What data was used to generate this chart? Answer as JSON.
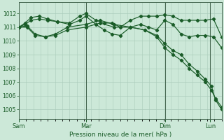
{
  "background_color": "#cce8d8",
  "grid_color": "#aaccbb",
  "line_color": "#1a5c28",
  "xlabel": "Pression niveau de la mer( hPa )",
  "ylim": [
    1004.3,
    1012.8
  ],
  "yticks": [
    1005,
    1006,
    1007,
    1008,
    1009,
    1010,
    1011,
    1012
  ],
  "xtick_labels": [
    "Sam",
    "Mar",
    "Dim",
    "Lun"
  ],
  "vline_x": [
    0.0,
    0.333,
    0.722,
    0.944
  ],
  "series1_x": [
    0.0,
    0.03,
    0.06,
    0.1,
    0.14,
    0.19,
    0.25,
    0.3,
    0.33,
    0.38,
    0.42,
    0.46,
    0.5,
    0.55,
    0.6,
    0.64,
    0.68,
    0.72,
    0.76,
    0.8,
    0.84,
    0.88,
    0.92,
    0.96,
    1.0
  ],
  "series1_y": [
    1011.0,
    1011.2,
    1011.5,
    1011.6,
    1011.5,
    1011.4,
    1011.3,
    1011.8,
    1012.0,
    1011.5,
    1011.3,
    1011.3,
    1011.0,
    1011.5,
    1011.8,
    1011.8,
    1011.8,
    1011.9,
    1011.8,
    1011.5,
    1011.5,
    1011.5,
    1011.5,
    1011.6,
    1010.3
  ],
  "series2_x": [
    0.0,
    0.03,
    0.06,
    0.1,
    0.14,
    0.19,
    0.25,
    0.3,
    0.33,
    0.38,
    0.42,
    0.46,
    0.5,
    0.55,
    0.6,
    0.64,
    0.68,
    0.72,
    0.76,
    0.8,
    0.84,
    0.88,
    0.92,
    0.96,
    1.0
  ],
  "series2_y": [
    1011.0,
    1011.3,
    1011.7,
    1011.8,
    1011.6,
    1011.4,
    1011.2,
    1011.5,
    1011.8,
    1011.2,
    1010.8,
    1010.5,
    1010.4,
    1011.0,
    1011.2,
    1011.0,
    1010.8,
    1011.5,
    1011.2,
    1010.5,
    1010.3,
    1010.4,
    1010.4,
    1010.3,
    1009.5
  ],
  "series3_x": [
    0.0,
    0.04,
    0.08,
    0.13,
    0.18,
    0.24,
    0.33,
    0.4,
    0.47,
    0.55,
    0.62,
    0.68,
    0.72,
    0.76,
    0.8,
    0.84,
    0.88,
    0.92,
    0.95,
    0.97,
    1.0
  ],
  "series3_y": [
    1011.0,
    1011.1,
    1010.5,
    1010.3,
    1010.4,
    1010.8,
    1011.0,
    1011.3,
    1011.0,
    1011.0,
    1010.8,
    1010.4,
    1009.8,
    1009.3,
    1009.0,
    1008.3,
    1007.8,
    1007.2,
    1006.7,
    1005.7,
    1005.0
  ],
  "series4_x": [
    0.0,
    0.04,
    0.08,
    0.13,
    0.18,
    0.24,
    0.33,
    0.4,
    0.47,
    0.55,
    0.62,
    0.68,
    0.72,
    0.76,
    0.8,
    0.84,
    0.88,
    0.92,
    0.95,
    0.97,
    1.0
  ],
  "series4_y": [
    1011.0,
    1011.0,
    1010.4,
    1010.3,
    1010.5,
    1011.0,
    1011.2,
    1011.5,
    1011.2,
    1011.0,
    1010.8,
    1010.3,
    1009.5,
    1009.0,
    1008.6,
    1008.0,
    1007.5,
    1007.0,
    1006.4,
    1005.8,
    1005.2
  ]
}
